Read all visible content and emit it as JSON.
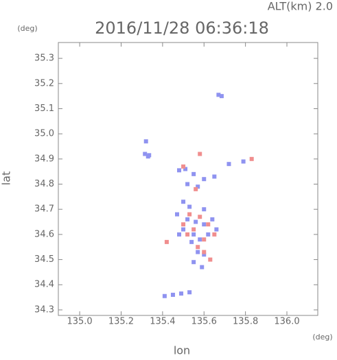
{
  "chart_data": {
    "type": "scatter",
    "title": "2016/11/28 06:36:18",
    "annotation": "ALT(km)  2.0",
    "y_unit": "(deg)",
    "x_unit": "(deg)",
    "x_label": "lon",
    "y_label": "lat",
    "xlim": [
      134.897,
      136.149
    ],
    "ylim": [
      34.278,
      35.363
    ],
    "xticks": [
      {
        "value": 135,
        "label": "135.0"
      },
      135.2,
      135.4,
      135.6,
      135.8,
      {
        "value": 136,
        "label": "136.0"
      }
    ],
    "yticks": [
      34.3,
      34.4,
      34.5,
      34.6,
      34.7,
      34.8,
      34.9,
      {
        "value": 35,
        "label": "35.0"
      },
      35.1,
      35.2,
      35.3
    ],
    "series": [
      {
        "color": "#8f93f0",
        "x": [
          135.67,
          135.685,
          135.315,
          135.33,
          135.32,
          135.335,
          135.48,
          135.51,
          135.55,
          135.6,
          135.65,
          135.72,
          135.79,
          135.57,
          135.52,
          135.5,
          135.53,
          135.6,
          135.47,
          135.52,
          135.56,
          135.6,
          135.64,
          135.5,
          135.55,
          135.62,
          135.58,
          135.54,
          135.57,
          135.6,
          135.55,
          135.59,
          135.41,
          135.45,
          135.49,
          135.53,
          135.66,
          135.48
        ],
        "values": [
          35.155,
          35.15,
          34.92,
          34.91,
          34.97,
          34.915,
          34.855,
          34.86,
          34.84,
          34.82,
          34.83,
          34.88,
          34.89,
          34.79,
          34.8,
          34.73,
          34.71,
          34.7,
          34.68,
          34.66,
          34.65,
          34.64,
          34.66,
          34.62,
          34.6,
          34.6,
          34.58,
          34.57,
          34.53,
          34.52,
          34.49,
          34.47,
          34.355,
          34.36,
          34.365,
          34.37,
          34.62,
          34.6
        ]
      },
      {
        "color": "#f08e8e",
        "x": [
          135.5,
          135.58,
          135.56,
          135.83,
          135.53,
          135.58,
          135.62,
          135.42,
          135.5,
          135.55,
          135.6,
          135.57,
          135.6,
          135.63,
          135.52,
          135.65
        ],
        "values": [
          34.87,
          34.92,
          34.78,
          34.9,
          34.68,
          34.67,
          34.64,
          34.57,
          34.64,
          34.62,
          34.58,
          34.55,
          34.53,
          34.5,
          34.6,
          34.6
        ]
      }
    ]
  }
}
